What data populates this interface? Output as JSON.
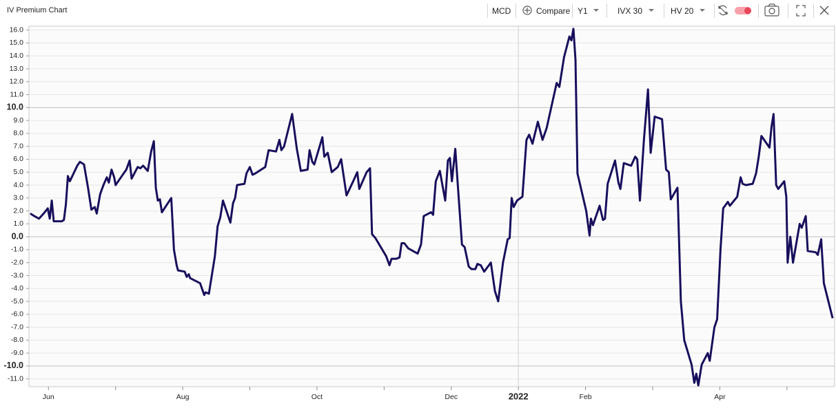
{
  "header": {
    "title": "IV Premium Chart"
  },
  "toolbar": {
    "symbol": "MCD",
    "compare": "Compare",
    "axis": "Y1",
    "iv_series": "IVX 30",
    "hv_series": "HV 20"
  },
  "chart_data": {
    "type": "line",
    "color": "#170f5c",
    "grid": true,
    "x": [
      -7.27,
      -7.21,
      -7.14,
      -7.07,
      -7.01,
      -6.98,
      -6.95,
      -6.92,
      -6.8,
      -6.77,
      -6.74,
      -6.71,
      -6.68,
      -6.57,
      -6.53,
      -6.47,
      -6.41,
      -6.36,
      -6.31,
      -6.28,
      -6.23,
      -6.18,
      -6.13,
      -6.1,
      -6.06,
      -6.02,
      -6.0,
      -5.92,
      -5.84,
      -5.79,
      -5.76,
      -5.67,
      -5.63,
      -5.59,
      -5.52,
      -5.47,
      -5.43,
      -5.4,
      -5.37,
      -5.34,
      -5.31,
      -5.17,
      -5.13,
      -5.09,
      -5.07,
      -4.97,
      -4.94,
      -4.91,
      -4.89,
      -4.74,
      -4.68,
      -4.66,
      -4.61,
      -4.52,
      -4.48,
      -4.44,
      -4.4,
      -4.29,
      -4.25,
      -4.22,
      -4.19,
      -4.08,
      -4.05,
      -4.0,
      -3.96,
      -3.92,
      -3.77,
      -3.72,
      -3.61,
      -3.56,
      -3.53,
      -3.49,
      -3.37,
      -3.3,
      -3.24,
      -3.14,
      -3.11,
      -3.07,
      -3.04,
      -2.92,
      -2.89,
      -2.84,
      -2.78,
      -2.69,
      -2.64,
      -2.6,
      -2.56,
      -2.46,
      -2.4,
      -2.37,
      -2.26,
      -2.21,
      -2.18,
      -2.13,
      -1.97,
      -1.92,
      -1.89,
      -1.82,
      -1.77,
      -1.74,
      -1.7,
      -1.64,
      -1.5,
      -1.45,
      -1.41,
      -1.3,
      -1.27,
      -1.23,
      -1.17,
      -1.09,
      -1.05,
      -1.02,
      -0.99,
      -0.94,
      -0.84,
      -0.8,
      -0.74,
      -0.7,
      -0.64,
      -0.61,
      -0.56,
      -0.51,
      -0.41,
      -0.35,
      -0.3,
      -0.23,
      -0.16,
      -0.13,
      -0.1,
      -0.07,
      -0.02,
      0.06,
      0.12,
      0.16,
      0.21,
      0.29,
      0.36,
      0.42,
      0.57,
      0.61,
      0.68,
      0.76,
      0.79,
      0.82,
      0.85,
      0.88,
      1.01,
      1.06,
      1.08,
      1.11,
      1.21,
      1.26,
      1.29,
      1.33,
      1.44,
      1.49,
      1.52,
      1.57,
      1.68,
      1.74,
      1.77,
      1.81,
      1.87,
      1.93,
      1.97,
      2.03,
      2.14,
      2.2,
      2.24,
      2.27,
      2.37,
      2.42,
      2.47,
      2.58,
      2.62,
      2.65,
      2.68,
      2.73,
      2.82,
      2.85,
      2.92,
      2.96,
      3.01,
      3.05,
      3.12,
      3.15,
      3.26,
      3.31,
      3.34,
      3.39,
      3.49,
      3.54,
      3.58,
      3.62,
      3.74,
      3.77,
      3.8,
      3.84,
      3.87,
      3.96,
      3.99,
      4.01,
      4.05,
      4.09,
      4.19,
      4.22,
      4.28,
      4.31,
      4.43,
      4.46,
      4.51,
      4.55,
      4.68
    ],
    "values": [
      1.8,
      1.6,
      1.4,
      1.8,
      2.2,
      1.4,
      2.8,
      1.2,
      1.2,
      1.3,
      2.5,
      4.7,
      4.3,
      5.5,
      5.8,
      5.6,
      3.8,
      2.1,
      2.3,
      1.8,
      3.3,
      4.0,
      4.6,
      4.2,
      5.2,
      4.6,
      4.0,
      4.6,
      5.2,
      5.9,
      4.5,
      5.4,
      5.3,
      5.5,
      5.1,
      6.6,
      7.4,
      3.8,
      2.8,
      2.9,
      1.9,
      3.0,
      -1.0,
      -2.2,
      -2.6,
      -2.7,
      -3.1,
      -2.9,
      -3.2,
      -3.6,
      -4.5,
      -4.3,
      -4.4,
      -1.5,
      0.8,
      1.5,
      2.8,
      1.1,
      2.6,
      3.0,
      4.0,
      4.1,
      4.9,
      5.4,
      4.8,
      4.9,
      5.4,
      6.7,
      6.6,
      7.5,
      6.7,
      7.0,
      9.5,
      6.8,
      5.1,
      5.2,
      6.7,
      5.8,
      5.6,
      7.7,
      6.2,
      6.5,
      5.0,
      5.4,
      6.0,
      4.6,
      3.2,
      4.3,
      5.0,
      3.7,
      5.0,
      5.3,
      0.2,
      -0.1,
      -1.5,
      -2.2,
      -1.7,
      -1.7,
      -1.6,
      -0.5,
      -0.5,
      -0.9,
      -1.3,
      -0.6,
      1.6,
      1.9,
      1.7,
      4.3,
      5.1,
      2.8,
      5.9,
      6.1,
      4.3,
      6.8,
      -0.6,
      -0.8,
      -2.3,
      -2.5,
      -2.5,
      -2.1,
      -2.2,
      -2.7,
      -2.0,
      -4.2,
      -5.0,
      -2.0,
      -0.2,
      -0.1,
      3.0,
      2.3,
      2.8,
      3.1,
      7.5,
      7.9,
      7.2,
      8.9,
      7.5,
      8.4,
      11.9,
      11.6,
      13.9,
      15.5,
      15.2,
      16.1,
      13.7,
      4.9,
      2.0,
      0.1,
      1.4,
      0.9,
      2.4,
      1.3,
      1.4,
      4.1,
      5.9,
      4.2,
      3.7,
      5.7,
      5.5,
      6.2,
      6.0,
      2.8,
      7.5,
      11.4,
      6.5,
      9.3,
      9.1,
      5.2,
      5.0,
      2.9,
      3.8,
      -5.0,
      -8.0,
      -9.9,
      -11.3,
      -10.6,
      -11.5,
      -9.9,
      -9.0,
      -9.6,
      -7.0,
      -6.4,
      -1.0,
      2.2,
      2.7,
      2.4,
      3.1,
      4.6,
      4.1,
      4.0,
      4.1,
      4.9,
      6.2,
      7.8,
      6.9,
      8.5,
      9.5,
      4.0,
      3.7,
      4.3,
      3.1,
      -2.0,
      0.0,
      -2.0,
      1.0,
      0.7,
      1.6,
      -1.1,
      -1.2,
      -1.4,
      -0.2,
      -3.6,
      -6.3
    ],
    "xlim": [
      -7.29,
      4.71
    ],
    "xticks": [
      {
        "value": -7,
        "label": "Jun"
      },
      {
        "value": -5,
        "label": "Aug"
      },
      {
        "value": -3,
        "label": "Oct"
      },
      {
        "value": -1,
        "label": "Dec"
      },
      {
        "value": 0,
        "label": "2022"
      },
      {
        "value": 1,
        "label": "Feb"
      },
      {
        "value": 3,
        "label": "Apr"
      }
    ],
    "x_minor_ticks": [
      -6,
      -4,
      -2,
      2,
      4
    ],
    "ylim": [
      -11.6,
      16.3
    ],
    "yticks": [
      {
        "value": 16,
        "label": "16.0"
      },
      {
        "value": 15,
        "label": "15.0"
      },
      {
        "value": 14,
        "label": "14.0"
      },
      {
        "value": 13,
        "label": "13.0"
      },
      {
        "value": 12,
        "label": "12.0"
      },
      {
        "value": 11,
        "label": "11.0"
      },
      {
        "value": 10,
        "label": "10.0"
      },
      {
        "value": 9,
        "label": "9.0"
      },
      {
        "value": 8,
        "label": "8.0"
      },
      {
        "value": 7,
        "label": "7.0"
      },
      {
        "value": 6,
        "label": "6.0"
      },
      {
        "value": 5,
        "label": "5.0"
      },
      {
        "value": 4,
        "label": "4.0"
      },
      {
        "value": 3,
        "label": "3.0"
      },
      {
        "value": 2,
        "label": "2.0"
      },
      {
        "value": 1,
        "label": "1.0"
      },
      {
        "value": 0,
        "label": "0.0"
      },
      {
        "value": -1,
        "label": "-1.0"
      },
      {
        "value": -2,
        "label": "-2.0"
      },
      {
        "value": -3,
        "label": "-3.0"
      },
      {
        "value": -4,
        "label": "-4.0"
      },
      {
        "value": -5,
        "label": "-5.0"
      },
      {
        "value": -6,
        "label": "-6.0"
      },
      {
        "value": -7,
        "label": "-7.0"
      },
      {
        "value": -8,
        "label": "-8.0"
      },
      {
        "value": -9,
        "label": "-9.0"
      },
      {
        "value": -10,
        "label": "-10.0"
      },
      {
        "value": -11,
        "label": "-11.0"
      }
    ]
  }
}
